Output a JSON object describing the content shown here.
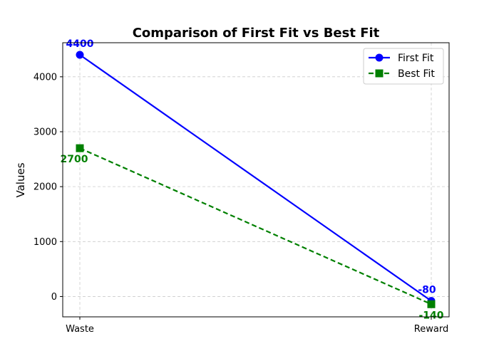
{
  "chart_data": {
    "type": "line",
    "title": "Comparison of First Fit vs Best Fit",
    "xlabel": "",
    "ylabel": "Values",
    "categories": [
      "Waste",
      "Reward"
    ],
    "yticks": [
      0,
      1000,
      2000,
      3000,
      4000
    ],
    "ylim": [
      -370,
      4620
    ],
    "grid": true,
    "legend_position": "top-right",
    "series": [
      {
        "name": "First Fit",
        "values": [
          4400,
          -80
        ],
        "labels": [
          "4400",
          "-80"
        ],
        "color": "#0000ff",
        "marker": "circle",
        "line_style": "solid"
      },
      {
        "name": "Best Fit",
        "values": [
          2700,
          -140
        ],
        "labels": [
          "2700",
          "-140"
        ],
        "color": "#008000",
        "marker": "square",
        "line_style": "dashed"
      }
    ]
  }
}
